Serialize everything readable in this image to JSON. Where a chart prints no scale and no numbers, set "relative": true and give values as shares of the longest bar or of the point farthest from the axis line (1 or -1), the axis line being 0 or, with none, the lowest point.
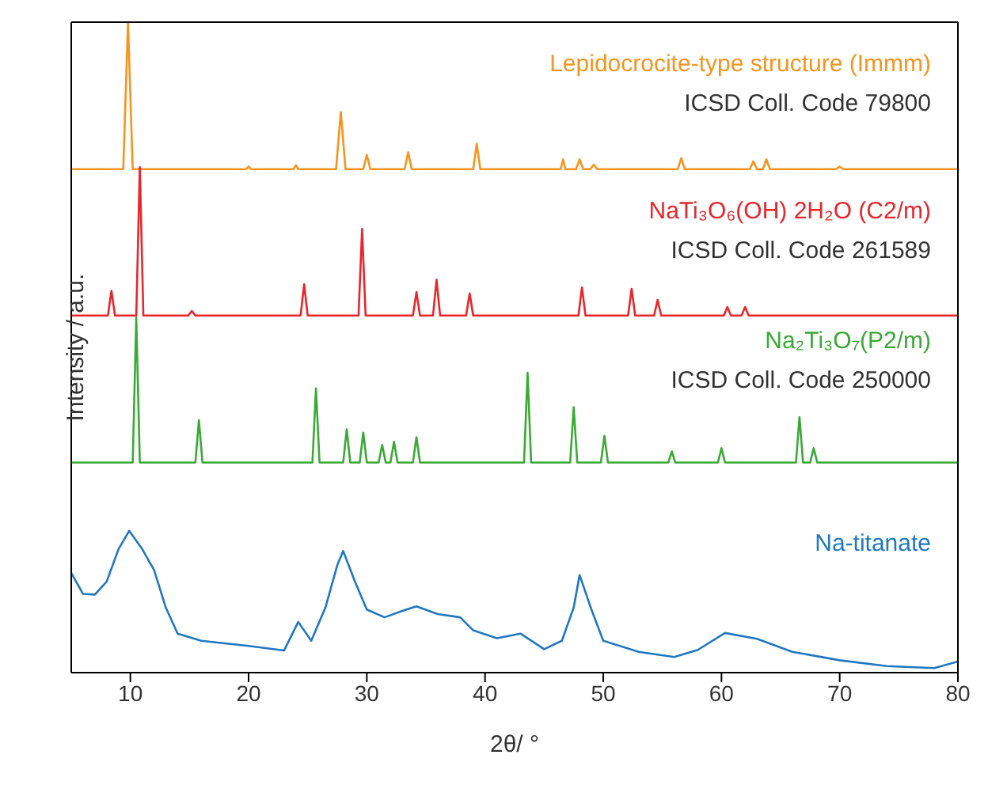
{
  "chart_data": {
    "type": "line",
    "relative": true,
    "xlabel": "2θ/ °",
    "ylabel": "Intensity / a.u.",
    "xlim": [
      5,
      80
    ],
    "xticks": [
      10,
      20,
      30,
      40,
      50,
      60,
      70,
      80
    ],
    "tick_labels": "x",
    "marker": "none",
    "line_style": "solid",
    "series": [
      {
        "name": "Lepidocrocite-type structure (Immm)",
        "color": "#f7941d",
        "x": [
          5,
          9.4,
          9.8,
          10.2,
          19.8,
          20,
          20.2,
          23.8,
          24,
          24.2,
          27.4,
          27.8,
          28.2,
          29.7,
          30,
          30.3,
          33.2,
          33.5,
          33.8,
          39,
          39.3,
          39.6,
          46.4,
          46.6,
          46.8,
          47.7,
          48,
          48.3,
          48.9,
          49.2,
          49.5,
          56.3,
          56.6,
          56.9,
          62.4,
          62.7,
          63,
          63.5,
          63.8,
          64.1,
          69.7,
          70,
          70.3,
          80
        ],
        "values": [
          0.774,
          0.774,
          1,
          0.774,
          0.774,
          0.778,
          0.774,
          0.774,
          0.78,
          0.774,
          0.774,
          0.862,
          0.774,
          0.774,
          0.796,
          0.774,
          0.774,
          0.8,
          0.774,
          0.774,
          0.813,
          0.774,
          0.774,
          0.789,
          0.774,
          0.774,
          0.789,
          0.774,
          0.774,
          0.781,
          0.774,
          0.774,
          0.791,
          0.774,
          0.774,
          0.786,
          0.774,
          0.774,
          0.789,
          0.774,
          0.774,
          0.778,
          0.774,
          0.774
        ]
      },
      {
        "name": "NaTi₃O₆(OH) 2H₂O (C2/m)",
        "color": "#e8262c",
        "x": [
          5,
          8.1,
          8.4,
          8.7,
          10.5,
          10.8,
          11.1,
          14.9,
          15.2,
          15.5,
          24.4,
          24.7,
          25,
          29.3,
          29.6,
          29.9,
          33.9,
          34.2,
          34.5,
          35.6,
          35.9,
          36.2,
          38.4,
          38.7,
          39,
          47.9,
          48.2,
          48.5,
          52.1,
          52.4,
          52.7,
          54.3,
          54.6,
          54.9,
          60.2,
          60.5,
          60.8,
          61.7,
          62,
          62.3,
          80
        ],
        "values": [
          0.549,
          0.549,
          0.587,
          0.549,
          0.549,
          0.777,
          0.549,
          0.549,
          0.556,
          0.549,
          0.549,
          0.597,
          0.549,
          0.549,
          0.682,
          0.549,
          0.549,
          0.585,
          0.549,
          0.549,
          0.604,
          0.549,
          0.549,
          0.583,
          0.549,
          0.549,
          0.592,
          0.549,
          0.549,
          0.59,
          0.549,
          0.549,
          0.573,
          0.549,
          0.549,
          0.562,
          0.549,
          0.549,
          0.562,
          0.549,
          0.549
        ]
      },
      {
        "name": "Na₂Ti₃O₇(P2/m)",
        "color": "#3aaa35",
        "x": [
          5,
          10.2,
          10.5,
          10.8,
          15.5,
          15.8,
          16.1,
          25.4,
          25.7,
          26,
          28,
          28.3,
          28.6,
          29.4,
          29.7,
          30,
          31,
          31.3,
          31.6,
          32,
          32.3,
          32.6,
          33.9,
          34.2,
          34.5,
          43.3,
          43.6,
          43.9,
          47.2,
          47.5,
          47.8,
          49.8,
          50.1,
          50.4,
          55.5,
          55.8,
          56.1,
          59.7,
          60,
          60.3,
          66.3,
          66.6,
          66.9,
          67.5,
          67.8,
          68.1,
          80
        ],
        "values": [
          0.323,
          0.323,
          0.546,
          0.323,
          0.323,
          0.388,
          0.323,
          0.323,
          0.437,
          0.323,
          0.323,
          0.374,
          0.323,
          0.323,
          0.369,
          0.323,
          0.323,
          0.35,
          0.323,
          0.323,
          0.355,
          0.323,
          0.323,
          0.362,
          0.323,
          0.323,
          0.461,
          0.323,
          0.323,
          0.408,
          0.323,
          0.323,
          0.364,
          0.323,
          0.323,
          0.34,
          0.323,
          0.323,
          0.345,
          0.323,
          0.323,
          0.393,
          0.323,
          0.323,
          0.345,
          0.323,
          0.323
        ]
      },
      {
        "name": "Na-titanate",
        "color": "#1f78c1",
        "x": [
          5,
          6,
          7,
          8,
          9,
          9.9,
          11,
          12,
          13,
          14,
          16,
          20,
          23,
          24.2,
          25.3,
          26.5,
          27.5,
          28,
          29,
          30,
          31.5,
          33,
          34.2,
          36,
          37.9,
          39,
          41,
          43,
          45,
          46.5,
          47.5,
          48,
          49,
          50,
          53,
          56,
          58,
          60.3,
          63,
          66,
          70,
          74,
          78,
          80
        ],
        "values": [
          0.153,
          0.121,
          0.12,
          0.14,
          0.19,
          0.218,
          0.19,
          0.158,
          0.1,
          0.06,
          0.049,
          0.041,
          0.034,
          0.078,
          0.049,
          0.1,
          0.165,
          0.187,
          0.14,
          0.097,
          0.085,
          0.095,
          0.102,
          0.09,
          0.085,
          0.065,
          0.053,
          0.06,
          0.036,
          0.049,
          0.1,
          0.15,
          0.097,
          0.049,
          0.032,
          0.024,
          0.035,
          0.061,
          0.052,
          0.032,
          0.019,
          0.01,
          0.007,
          0.017
        ]
      }
    ],
    "annotations": [
      "ICSD Coll. Code 79800",
      "ICSD Coll. Code 261589",
      "ICSD Coll. Code 250000"
    ]
  }
}
